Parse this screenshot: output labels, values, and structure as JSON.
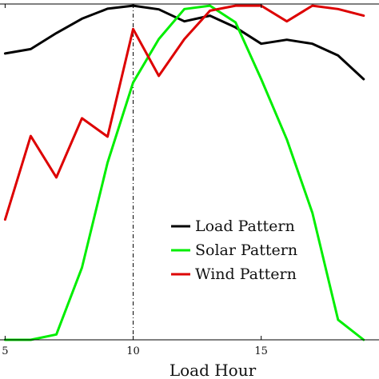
{
  "chart_data": {
    "type": "line",
    "xlabel": "Load Hour",
    "ylabel": "",
    "title": "",
    "xlim": [
      4.8,
      19.6
    ],
    "ylim": [
      0,
      1.005
    ],
    "xticks": [
      5,
      10,
      15
    ],
    "grid": false,
    "legend": "center-right",
    "reference_line": {
      "x": 10,
      "style": "dash-dot",
      "color": "#000000"
    },
    "x": [
      5,
      6,
      7,
      8,
      9,
      10,
      11,
      12,
      13,
      14,
      15,
      16,
      17,
      18,
      19
    ],
    "series": [
      {
        "name": "Load Pattern",
        "color": "#000000",
        "values": [
          0.857,
          0.87,
          0.918,
          0.961,
          0.991,
          1.0,
          0.989,
          0.953,
          0.97,
          0.935,
          0.886,
          0.898,
          0.886,
          0.851,
          0.78
        ]
      },
      {
        "name": "Solar Pattern",
        "color": "#00ee00",
        "values": [
          0.0,
          0.0,
          0.016,
          0.216,
          0.53,
          0.77,
          0.9,
          0.99,
          1.0,
          0.95,
          0.78,
          0.6,
          0.38,
          0.06,
          0.0
        ]
      },
      {
        "name": "Wind Pattern",
        "color": "#dd0000",
        "values": [
          0.36,
          0.61,
          0.486,
          0.663,
          0.608,
          0.93,
          0.79,
          0.9,
          0.985,
          1.0,
          1.0,
          0.953,
          1.0,
          0.99,
          0.97
        ]
      }
    ]
  }
}
